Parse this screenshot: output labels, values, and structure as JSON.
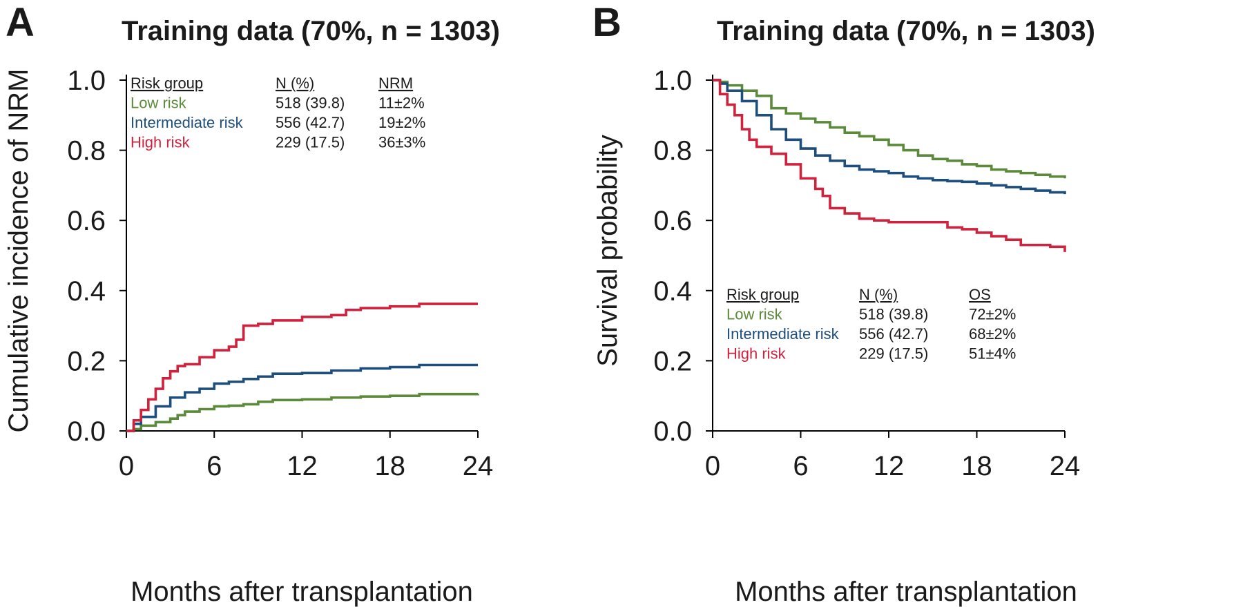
{
  "colors": {
    "low": "#5a8a3a",
    "intermediate": "#1e4e7e",
    "high": "#d0213d"
  },
  "chart_data": [
    {
      "type": "line",
      "panel": "A",
      "title": "Training data (70%, n = 1303)",
      "xlabel": "Months after transplantation",
      "ylabel": "Cumulative incidence of NRM",
      "xlim": [
        0,
        24
      ],
      "ylim": [
        0,
        1.0
      ],
      "x_ticks": [
        "0",
        "6",
        "12",
        "18",
        "24"
      ],
      "y_ticks": [
        "0.0",
        "0.2",
        "0.4",
        "0.6",
        "0.8",
        "1.0"
      ],
      "legend_placement": "top-left",
      "legend_headers": [
        "Risk group",
        "N (%)",
        "NRM"
      ],
      "legend_rows": [
        {
          "group": "Low risk",
          "n": "518 (39.8)",
          "stat": "11±2%",
          "color_key": "low"
        },
        {
          "group": "Intermediate risk",
          "n": "556 (42.7)",
          "stat": "19±2%",
          "color_key": "intermediate"
        },
        {
          "group": "High risk",
          "n": "229 (17.5)",
          "stat": "36±3%",
          "color_key": "high"
        }
      ],
      "series": [
        {
          "name": "Low risk",
          "color_key": "low",
          "x": [
            0,
            0.5,
            1,
            2,
            3,
            3.5,
            4,
            5,
            6,
            7,
            8,
            9,
            10,
            12,
            14,
            16,
            18,
            20,
            22,
            24
          ],
          "y": [
            0,
            0.005,
            0.015,
            0.025,
            0.035,
            0.045,
            0.055,
            0.062,
            0.07,
            0.072,
            0.076,
            0.083,
            0.088,
            0.09,
            0.095,
            0.098,
            0.1,
            0.105,
            0.105,
            0.106
          ]
        },
        {
          "name": "Intermediate risk",
          "color_key": "intermediate",
          "x": [
            0,
            0.5,
            1,
            2,
            3,
            4,
            5,
            6,
            7,
            8,
            9,
            10,
            12,
            14,
            16,
            18,
            20,
            22,
            24
          ],
          "y": [
            0,
            0.02,
            0.04,
            0.07,
            0.095,
            0.11,
            0.12,
            0.135,
            0.14,
            0.148,
            0.155,
            0.163,
            0.165,
            0.172,
            0.178,
            0.182,
            0.188,
            0.188,
            0.188
          ]
        },
        {
          "name": "High risk",
          "color_key": "high",
          "x": [
            0,
            0.5,
            1,
            1.5,
            2,
            2.5,
            3,
            3.5,
            4,
            5,
            6,
            7,
            7.5,
            8,
            9,
            10,
            12,
            14,
            15,
            16,
            18,
            20,
            22,
            24
          ],
          "y": [
            0,
            0.03,
            0.06,
            0.09,
            0.12,
            0.15,
            0.17,
            0.185,
            0.19,
            0.21,
            0.23,
            0.24,
            0.26,
            0.3,
            0.305,
            0.315,
            0.325,
            0.33,
            0.345,
            0.35,
            0.355,
            0.362,
            0.362,
            0.362
          ]
        }
      ]
    },
    {
      "type": "line",
      "panel": "B",
      "title": "Training data (70%, n = 1303)",
      "xlabel": "Months after transplantation",
      "ylabel": "Survival probability",
      "xlim": [
        0,
        24
      ],
      "ylim": [
        0,
        1.0
      ],
      "x_ticks": [
        "0",
        "6",
        "12",
        "18",
        "24"
      ],
      "y_ticks": [
        "0.0",
        "0.2",
        "0.4",
        "0.6",
        "0.8",
        "1.0"
      ],
      "legend_placement": "bottom-left",
      "legend_headers": [
        "Risk group",
        "N (%)",
        "OS"
      ],
      "legend_rows": [
        {
          "group": "Low risk",
          "n": "518 (39.8)",
          "stat": "72±2%",
          "color_key": "low"
        },
        {
          "group": "Intermediate risk",
          "n": "556 (42.7)",
          "stat": "68±2%",
          "color_key": "intermediate"
        },
        {
          "group": "High risk",
          "n": "229 (17.5)",
          "stat": "51±4%",
          "color_key": "high"
        }
      ],
      "series": [
        {
          "name": "Low risk",
          "color_key": "low",
          "x": [
            0,
            0.5,
            1,
            2,
            3,
            4,
            5,
            6,
            7,
            8,
            9,
            10,
            11,
            12,
            13,
            14,
            15,
            16,
            17,
            18,
            19,
            20,
            21,
            22,
            23,
            24
          ],
          "y": [
            1.0,
            0.995,
            0.985,
            0.97,
            0.955,
            0.92,
            0.905,
            0.89,
            0.88,
            0.865,
            0.85,
            0.84,
            0.83,
            0.815,
            0.8,
            0.785,
            0.775,
            0.77,
            0.76,
            0.755,
            0.745,
            0.74,
            0.735,
            0.73,
            0.725,
            0.72
          ]
        },
        {
          "name": "Intermediate risk",
          "color_key": "intermediate",
          "x": [
            0,
            0.5,
            1,
            2,
            3,
            4,
            5,
            6,
            7,
            8,
            9,
            10,
            11,
            12,
            13,
            14,
            15,
            16,
            17,
            18,
            19,
            20,
            21,
            22,
            23,
            24
          ],
          "y": [
            1.0,
            0.99,
            0.97,
            0.94,
            0.9,
            0.86,
            0.83,
            0.805,
            0.785,
            0.77,
            0.755,
            0.745,
            0.74,
            0.735,
            0.725,
            0.72,
            0.715,
            0.712,
            0.71,
            0.705,
            0.7,
            0.695,
            0.69,
            0.685,
            0.68,
            0.675
          ]
        },
        {
          "name": "High risk",
          "color_key": "high",
          "x": [
            0,
            0.5,
            1,
            1.5,
            2,
            2.5,
            3,
            4,
            5,
            6,
            7,
            7.5,
            8,
            9,
            10,
            11,
            12,
            13,
            14,
            15,
            16,
            17,
            18,
            19,
            20,
            21,
            22,
            23,
            24
          ],
          "y": [
            1.0,
            0.96,
            0.93,
            0.9,
            0.86,
            0.83,
            0.81,
            0.79,
            0.76,
            0.72,
            0.69,
            0.67,
            0.635,
            0.62,
            0.605,
            0.6,
            0.595,
            0.595,
            0.595,
            0.595,
            0.58,
            0.575,
            0.565,
            0.555,
            0.545,
            0.53,
            0.53,
            0.525,
            0.51
          ]
        }
      ]
    }
  ]
}
